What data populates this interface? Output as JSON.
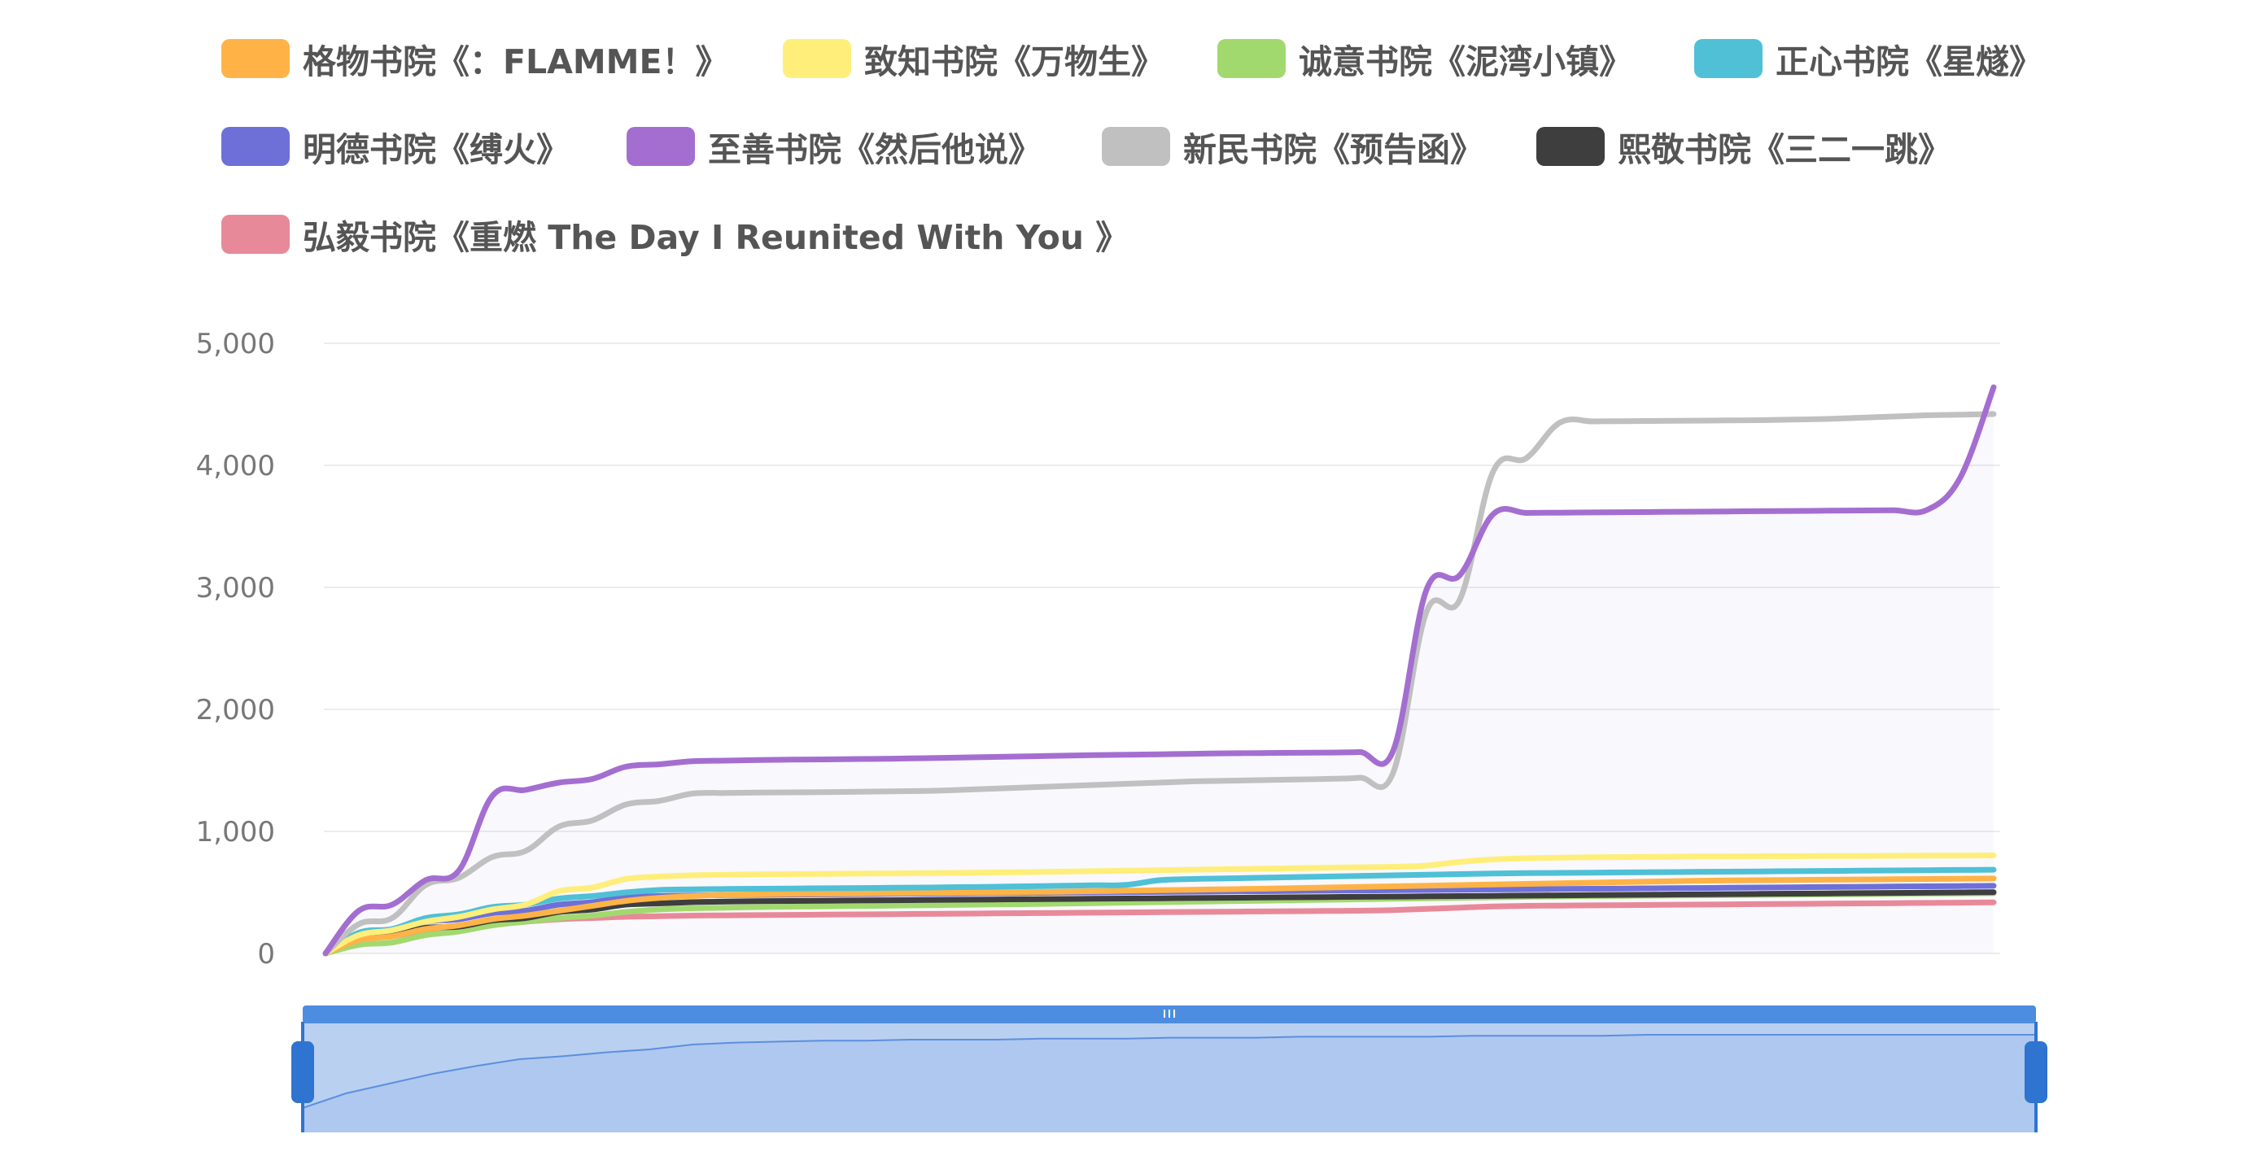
{
  "chart_data": {
    "type": "line",
    "title": "",
    "xlabel": "",
    "ylabel": "",
    "ylim": [
      0,
      5000
    ],
    "y_ticks": [
      "5,000",
      "4,000",
      "3,000",
      "2,000",
      "1,000",
      "0"
    ],
    "y_tick_values": [
      5000,
      4000,
      3000,
      2000,
      1000,
      0
    ],
    "grid": true,
    "legend_position": "top",
    "x": [
      0,
      1,
      2,
      3,
      4,
      5,
      6,
      7,
      8,
      9,
      10,
      11,
      12,
      13,
      14,
      15,
      16,
      17,
      18,
      19,
      20,
      21,
      22,
      23,
      24,
      25,
      26,
      27,
      28,
      29,
      30,
      31,
      32,
      33,
      34,
      35,
      36,
      37,
      38,
      39,
      40,
      41,
      42,
      43,
      44,
      45,
      46,
      47,
      48,
      49,
      50
    ],
    "series": [
      {
        "name": "格物书院《：FLAMME！》",
        "color": "#FFB347",
        "values": [
          0,
          110,
          140,
          200,
          230,
          280,
          310,
          350,
          390,
          430,
          455,
          470,
          480,
          485,
          488,
          490,
          492,
          494,
          496,
          498,
          500,
          503,
          506,
          510,
          514,
          518,
          522,
          526,
          530,
          535,
          540,
          545,
          550,
          555,
          560,
          565,
          570,
          575,
          580,
          585,
          590,
          595,
          598,
          600,
          602,
          604,
          606,
          608,
          610,
          612,
          614
        ]
      },
      {
        "name": "致知书院《万物生》",
        "color": "#FFEE7A",
        "values": [
          0,
          150,
          190,
          260,
          300,
          360,
          400,
          510,
          540,
          610,
          630,
          640,
          645,
          648,
          650,
          652,
          654,
          656,
          658,
          660,
          663,
          666,
          670,
          674,
          678,
          682,
          686,
          690,
          694,
          698,
          702,
          706,
          710,
          720,
          750,
          770,
          780,
          785,
          788,
          790,
          792,
          794,
          795,
          796,
          797,
          798,
          799,
          800,
          801,
          802,
          803
        ]
      },
      {
        "name": "诚意书院《泥湾小镇》",
        "color": "#A2D96F",
        "values": [
          0,
          70,
          90,
          150,
          180,
          230,
          260,
          290,
          310,
          340,
          360,
          370,
          375,
          380,
          383,
          386,
          389,
          392,
          395,
          398,
          401,
          404,
          408,
          412,
          416,
          420,
          424,
          428,
          432,
          436,
          440,
          444,
          448,
          452,
          456,
          460,
          464,
          467,
          470,
          472,
          474,
          476,
          478,
          480,
          482,
          484,
          486,
          488,
          490,
          492,
          494
        ]
      },
      {
        "name": "正心书院《星燧》",
        "color": "#4FC0D6",
        "values": [
          0,
          170,
          200,
          290,
          320,
          380,
          400,
          450,
          470,
          500,
          520,
          525,
          528,
          530,
          532,
          534,
          536,
          538,
          540,
          543,
          546,
          550,
          554,
          558,
          562,
          600,
          610,
          615,
          620,
          625,
          630,
          635,
          640,
          645,
          650,
          655,
          658,
          660,
          662,
          664,
          666,
          668,
          670,
          672,
          674,
          676,
          678,
          680,
          682,
          684,
          686
        ]
      },
      {
        "name": "明德书院《缚火》",
        "color": "#6E70D8",
        "values": [
          0,
          160,
          190,
          260,
          280,
          330,
          350,
          400,
          420,
          460,
          470,
          475,
          478,
          480,
          482,
          484,
          486,
          488,
          490,
          492,
          494,
          496,
          498,
          500,
          502,
          504,
          506,
          508,
          510,
          512,
          514,
          516,
          518,
          520,
          522,
          524,
          526,
          528,
          530,
          532,
          534,
          536,
          538,
          540,
          542,
          544,
          546,
          548,
          550,
          552,
          554
        ]
      },
      {
        "name": "至善书院《然后他说》",
        "color": "#A46ED1",
        "values": [
          0,
          350,
          400,
          600,
          680,
          1290,
          1340,
          1400,
          1430,
          1530,
          1550,
          1575,
          1580,
          1585,
          1588,
          1590,
          1593,
          1596,
          1600,
          1605,
          1610,
          1615,
          1620,
          1625,
          1628,
          1632,
          1636,
          1640,
          1642,
          1644,
          1646,
          1650,
          1660,
          2980,
          3100,
          3600,
          3610,
          3612,
          3614,
          3616,
          3618,
          3620,
          3622,
          3624,
          3626,
          3628,
          3630,
          3632,
          3634,
          3900,
          4640
        ]
      },
      {
        "name": "新民书院《预告函》",
        "color": "#C0C0C0",
        "values": [
          0,
          240,
          290,
          560,
          620,
          790,
          840,
          1040,
          1090,
          1220,
          1250,
          1310,
          1315,
          1318,
          1320,
          1322,
          1325,
          1328,
          1332,
          1340,
          1350,
          1360,
          1370,
          1380,
          1390,
          1400,
          1410,
          1415,
          1420,
          1425,
          1430,
          1440,
          1480,
          2800,
          2900,
          3950,
          4060,
          4350,
          4360,
          4362,
          4364,
          4366,
          4368,
          4370,
          4375,
          4380,
          4390,
          4400,
          4410,
          4415,
          4420
        ]
      },
      {
        "name": "熙敬书院《三二一跳》",
        "color": "#3E3E3E",
        "values": [
          0,
          130,
          160,
          210,
          220,
          270,
          290,
          340,
          360,
          400,
          410,
          420,
          425,
          428,
          430,
          432,
          434,
          436,
          438,
          440,
          442,
          444,
          446,
          448,
          450,
          452,
          454,
          456,
          458,
          460,
          462,
          464,
          466,
          468,
          470,
          472,
          474,
          476,
          478,
          480,
          482,
          484,
          486,
          488,
          490,
          492,
          494,
          496,
          498,
          500,
          502
        ]
      },
      {
        "name": "弘毅书院《重燃 The Day I Reunited With You 》",
        "color": "#E8899A",
        "values": [
          0,
          120,
          140,
          190,
          200,
          240,
          260,
          280,
          290,
          300,
          305,
          310,
          312,
          314,
          316,
          318,
          320,
          322,
          324,
          326,
          328,
          330,
          332,
          334,
          336,
          338,
          340,
          342,
          344,
          346,
          348,
          350,
          355,
          365,
          375,
          385,
          390,
          392,
          394,
          396,
          398,
          400,
          402,
          404,
          406,
          408,
          410,
          412,
          414,
          416,
          418
        ]
      }
    ],
    "datazoom": {
      "start_percent": 0,
      "end_percent": 100,
      "preview_values": [
        0.25,
        0.4,
        0.5,
        0.6,
        0.68,
        0.75,
        0.78,
        0.82,
        0.85,
        0.9,
        0.92,
        0.93,
        0.94,
        0.94,
        0.95,
        0.95,
        0.95,
        0.96,
        0.96,
        0.96,
        0.97,
        0.97,
        0.97,
        0.98,
        0.98,
        0.98,
        0.98,
        0.99,
        0.99,
        0.99,
        0.99,
        1.0,
        1.0,
        1.0,
        1.0,
        1.0,
        1.0,
        1.0,
        1.0,
        1.0,
        1.0
      ],
      "handle_color": "#2F74D0",
      "fill_color": "#B9D0F0",
      "line_color": "#5B8FE0"
    }
  }
}
